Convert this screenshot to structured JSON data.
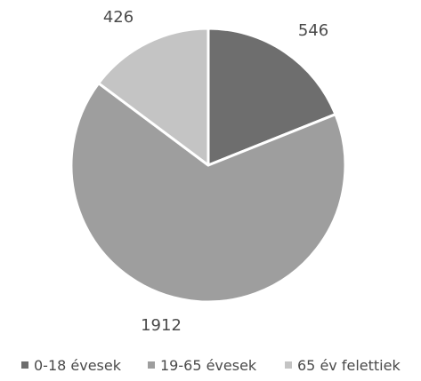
{
  "chart_data": {
    "type": "pie",
    "categories": [
      "0-18 évesek",
      "19-65 évesek",
      "65 év felettiek"
    ],
    "values": [
      546,
      1912,
      426
    ],
    "colors": [
      "#6e6e6e",
      "#9e9e9e",
      "#c4c4c4"
    ],
    "slice_border_color": "#ffffff",
    "legend_position": "bottom",
    "start_angle_deg": 0,
    "direction": "clockwise"
  }
}
